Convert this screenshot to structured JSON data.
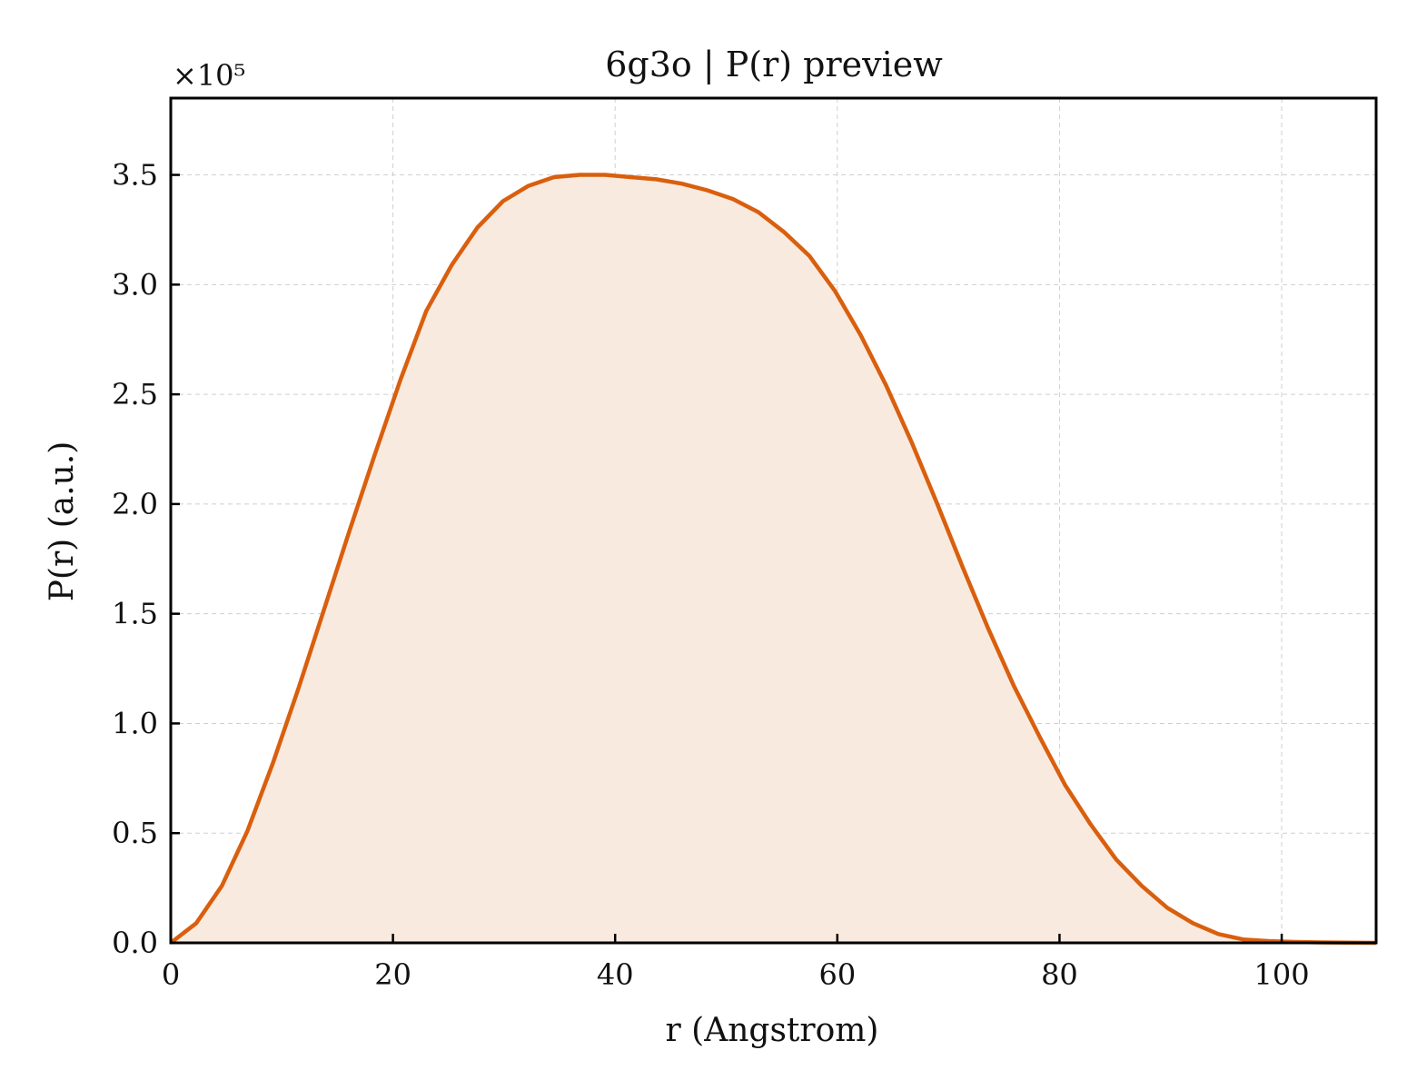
{
  "chart_data": {
    "type": "area",
    "title": "6g3o | P(r) preview",
    "xlabel": "r (Angstrom)",
    "ylabel": "P(r) (a.u.)",
    "y_multiplier_label": "×10⁵",
    "y_multiplier": 100000,
    "xlim": [
      0,
      108.5
    ],
    "ylim": [
      0,
      3.85
    ],
    "xticks": [
      0,
      20,
      40,
      60,
      80,
      100
    ],
    "xtick_labels": [
      "0",
      "20",
      "40",
      "60",
      "80",
      "100"
    ],
    "yticks": [
      0,
      0.5,
      1.0,
      1.5,
      2.0,
      2.5,
      3.0,
      3.5
    ],
    "ytick_labels": [
      "0.0",
      "0.5",
      "1.0",
      "1.5",
      "2.0",
      "2.5",
      "3.0",
      "3.5"
    ],
    "grid": true,
    "line_color": "#d95f0e",
    "fill_color": "#f9eadf",
    "series": [
      {
        "x": [
          0,
          2.3,
          4.6,
          6.9,
          9.2,
          11.5,
          13.8,
          16.1,
          18.4,
          20.7,
          23.0,
          25.3,
          27.6,
          29.9,
          32.2,
          34.5,
          36.8,
          39.1,
          41.4,
          43.7,
          46.0,
          48.3,
          50.6,
          52.9,
          55.2,
          57.5,
          59.8,
          62.1,
          64.4,
          66.7,
          69.0,
          71.3,
          73.6,
          75.9,
          78.2,
          80.5,
          82.8,
          85.1,
          87.4,
          89.7,
          92.0,
          94.3,
          96.6,
          98.9,
          101.2,
          103.5,
          105.8,
          108.5
        ],
        "y": [
          0.0,
          0.09,
          0.26,
          0.51,
          0.82,
          1.16,
          1.52,
          1.88,
          2.23,
          2.57,
          2.88,
          3.09,
          3.26,
          3.38,
          3.45,
          3.49,
          3.5,
          3.5,
          3.49,
          3.48,
          3.46,
          3.43,
          3.39,
          3.33,
          3.24,
          3.13,
          2.97,
          2.77,
          2.54,
          2.28,
          2.0,
          1.71,
          1.43,
          1.17,
          0.94,
          0.72,
          0.54,
          0.38,
          0.26,
          0.16,
          0.09,
          0.04,
          0.015,
          0.008,
          0.004,
          0.002,
          0.001,
          0.0
        ]
      }
    ]
  }
}
